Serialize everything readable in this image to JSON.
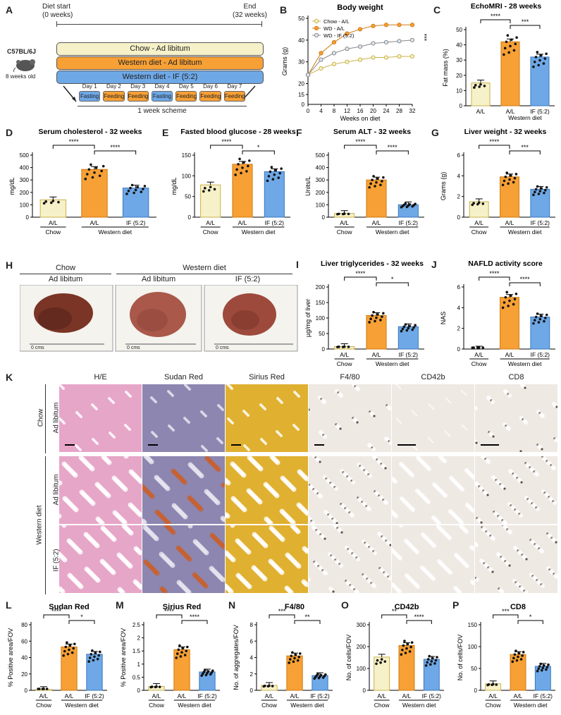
{
  "colors": {
    "chow": "#f7f1c9",
    "chow_edge": "#c9b24a",
    "wd": "#f7a035",
    "wd_edge": "#d07a10",
    "if": "#6ea8e6",
    "if_edge": "#3b78c0",
    "histo_he": "#e6a6c8",
    "histo_sudan": "#8c86b0",
    "histo_sirius": "#e0b030",
    "histo_ihc": "#efe9e4"
  },
  "panelA": {
    "label": "A",
    "diet_start": "Diet start",
    "diet_start_sub": "(0 weeks)",
    "end": "End",
    "end_sub": "(32 weeks)",
    "strain": "C57BL/6J",
    "age": "8 weeks old",
    "bars": [
      "Chow - Ad libitum",
      "Western diet - Ad libitum",
      "Western diet - IF (5:2)"
    ],
    "days": [
      "Day 1",
      "Day 2",
      "Day 3",
      "Day 4",
      "Day 5",
      "Day 6",
      "Day 7"
    ],
    "day_states": [
      "Fasting",
      "Feeding",
      "Feeding",
      "Fasting",
      "Feeding",
      "Feeding",
      "Feeding"
    ],
    "scheme": "1 week scheme"
  },
  "panelB": {
    "label": "B",
    "title": "Body weight",
    "ylabel": "Grams (g)",
    "xlabel": "Weeks on diet",
    "sig": "***",
    "legend": [
      "Chow - A/L",
      "WD - A/L",
      "WD - IF (5:2)"
    ],
    "yticks": [
      "50",
      "40",
      "30",
      "20",
      "15",
      "0"
    ],
    "xticks": [
      "0",
      "4",
      "8",
      "12",
      "16",
      "20",
      "24",
      "28",
      "32"
    ]
  },
  "cats": {
    "al": "A/L",
    "if": "IF (5:2)",
    "chow": "Chow",
    "wd": "Western diet"
  },
  "chart_data": [
    {
      "panel": "B",
      "type": "line",
      "title": "Body weight",
      "xlabel": "Weeks on diet",
      "ylabel": "Grams (g)",
      "x": [
        0,
        4,
        8,
        12,
        16,
        20,
        24,
        28,
        32
      ],
      "series": [
        {
          "name": "Chow - A/L",
          "values": [
            24,
            27,
            29,
            30,
            31,
            32,
            32,
            32.5,
            32.5
          ]
        },
        {
          "name": "WD - A/L",
          "values": [
            24,
            34,
            39,
            43,
            45,
            46.5,
            47,
            47,
            47
          ]
        },
        {
          "name": "WD - IF (5:2)",
          "values": [
            24,
            31,
            34,
            36,
            37,
            38.5,
            39,
            39.5,
            40
          ]
        }
      ],
      "ylim": [
        0,
        50
      ]
    },
    {
      "panel": "C",
      "type": "bar",
      "title": "EchoMRI - 28 weeks",
      "ylabel": "Fat mass (%)",
      "categories": [
        "A/L",
        "A/L",
        "IF (5:2)"
      ],
      "values": [
        15,
        42,
        32
      ],
      "ylim": [
        0,
        50
      ],
      "yticks": [
        0,
        10,
        20,
        30,
        40,
        50
      ],
      "sig": [
        {
          "pair": [
            0,
            1
          ],
          "text": "****"
        },
        {
          "pair": [
            1,
            2
          ],
          "text": "***"
        }
      ]
    },
    {
      "panel": "D",
      "type": "bar",
      "title": "Serum cholesterol - 32 weeks",
      "ylabel": "mg/dL",
      "categories": [
        "A/L",
        "A/L",
        "IF (5:2)"
      ],
      "values": [
        140,
        385,
        235
      ],
      "ylim": [
        0,
        500
      ],
      "yticks": [
        0,
        100,
        200,
        300,
        400,
        500
      ],
      "sig": [
        {
          "pair": [
            0,
            1
          ],
          "text": "****"
        },
        {
          "pair": [
            1,
            2
          ],
          "text": "****"
        }
      ]
    },
    {
      "panel": "E",
      "type": "bar",
      "title": "Fasted blood glucose - 28 weeks",
      "ylabel": "mg/dL",
      "categories": [
        "A/L",
        "A/L",
        "IF (5:2)"
      ],
      "values": [
        78,
        128,
        110
      ],
      "ylim": [
        0,
        150
      ],
      "yticks": [
        0,
        50,
        100,
        150
      ],
      "sig": [
        {
          "pair": [
            0,
            1
          ],
          "text": "****"
        },
        {
          "pair": [
            1,
            2
          ],
          "text": "*"
        }
      ]
    },
    {
      "panel": "F",
      "type": "bar",
      "title": "Serum ALT - 32 weeks",
      "ylabel": "Units/L",
      "categories": [
        "A/L",
        "A/L",
        "IF (5:2)"
      ],
      "values": [
        30,
        300,
        100
      ],
      "ylim": [
        0,
        500
      ],
      "yticks": [
        0,
        100,
        200,
        300,
        400,
        500
      ],
      "sig": [
        {
          "pair": [
            0,
            1
          ],
          "text": "****"
        },
        {
          "pair": [
            1,
            2
          ],
          "text": "****"
        }
      ]
    },
    {
      "panel": "G",
      "type": "bar",
      "title": "Liver weight - 32 weeks",
      "ylabel": "Grams (g)",
      "categories": [
        "A/L",
        "A/L",
        "IF (5:2)"
      ],
      "values": [
        1.5,
        3.9,
        2.7
      ],
      "ylim": [
        0,
        6
      ],
      "yticks": [
        0,
        2,
        4,
        6
      ],
      "sig": [
        {
          "pair": [
            0,
            1
          ],
          "text": "****"
        },
        {
          "pair": [
            1,
            2
          ],
          "text": "***"
        }
      ]
    },
    {
      "panel": "I",
      "type": "bar",
      "title": "Liver triglycerides - 32 weeks",
      "ylabel": "µg/mg of liver",
      "categories": [
        "A/L",
        "A/L",
        "IF (5:2)"
      ],
      "values": [
        8,
        108,
        72
      ],
      "ylim": [
        0,
        200
      ],
      "yticks": [
        0,
        50,
        100,
        150,
        200
      ],
      "sig": [
        {
          "pair": [
            0,
            1
          ],
          "text": "****"
        },
        {
          "pair": [
            1,
            2
          ],
          "text": "*"
        }
      ]
    },
    {
      "panel": "J",
      "type": "bar",
      "title": "NAFLD activity score",
      "ylabel": "NAS",
      "categories": [
        "A/L",
        "A/L",
        "IF (5:2)"
      ],
      "values": [
        0,
        5,
        3.1
      ],
      "ylim": [
        0,
        6
      ],
      "yticks": [
        0,
        2,
        4,
        6
      ],
      "sig": [
        {
          "pair": [
            0,
            1
          ],
          "text": "****"
        },
        {
          "pair": [
            1,
            2
          ],
          "text": "****"
        }
      ]
    },
    {
      "panel": "L",
      "type": "bar",
      "title": "Sudan Red",
      "ylabel": "% Positive area/FOV",
      "categories": [
        "A/L",
        "A/L",
        "IF (5:2)"
      ],
      "values": [
        1,
        53,
        44
      ],
      "ylim": [
        0,
        80
      ],
      "yticks": [
        0,
        20,
        40,
        60,
        80
      ],
      "sig": [
        {
          "pair": [
            0,
            1
          ],
          "text": "****"
        },
        {
          "pair": [
            1,
            2
          ],
          "text": "*"
        }
      ]
    },
    {
      "panel": "M",
      "type": "bar",
      "title": "Sirius Red",
      "ylabel": "% Positive area/FOV",
      "categories": [
        "A/L",
        "A/L",
        "IF (5:2)"
      ],
      "values": [
        0.15,
        1.55,
        0.7
      ],
      "ylim": [
        0,
        2.5
      ],
      "yticks": [
        0,
        0.5,
        1.0,
        1.5,
        2.0,
        2.5
      ],
      "sig": [
        {
          "pair": [
            0,
            1
          ],
          "text": "****"
        },
        {
          "pair": [
            1,
            2
          ],
          "text": "****"
        }
      ]
    },
    {
      "panel": "N",
      "type": "bar",
      "title": "F4/80",
      "ylabel": "No. of aggregates/FOV",
      "categories": [
        "A/L",
        "A/L",
        "IF (5:2)"
      ],
      "values": [
        0.6,
        4.2,
        1.8
      ],
      "ylim": [
        0,
        8
      ],
      "yticks": [
        0,
        2,
        4,
        6,
        8
      ],
      "sig": [
        {
          "pair": [
            0,
            1
          ],
          "text": "***"
        },
        {
          "pair": [
            1,
            2
          ],
          "text": "**"
        }
      ]
    },
    {
      "panel": "O",
      "type": "bar",
      "title": "CD42b",
      "ylabel": "No. of cells/FOV",
      "categories": [
        "A/L",
        "A/L",
        "IF (5:2)"
      ],
      "values": [
        152,
        205,
        142
      ],
      "ylim": [
        0,
        300
      ],
      "yticks": [
        0,
        100,
        200,
        300
      ],
      "sig": [
        {
          "pair": [
            0,
            1
          ],
          "text": "**"
        },
        {
          "pair": [
            1,
            2
          ],
          "text": "****"
        }
      ]
    },
    {
      "panel": "P",
      "type": "bar",
      "title": "CD8",
      "ylabel": "No. of cells/FOV",
      "categories": [
        "A/L",
        "A/L",
        "IF (5:2)"
      ],
      "values": [
        15,
        82,
        55
      ],
      "ylim": [
        0,
        150
      ],
      "yticks": [
        0,
        50,
        100,
        150
      ],
      "sig": [
        {
          "pair": [
            0,
            1
          ],
          "text": "***"
        },
        {
          "pair": [
            1,
            2
          ],
          "text": "*"
        }
      ]
    }
  ],
  "panelH": {
    "label": "H",
    "chow": "Chow",
    "wd": "Western diet",
    "ad1": "Ad libitum",
    "ad2": "Ad libitum",
    "if": "IF (5:2)",
    "ruler": "0 cms"
  },
  "panelK": {
    "label": "K",
    "cols": [
      "H/E",
      "Sudan Red",
      "Sirius Red",
      "F4/80",
      "CD42b",
      "CD8"
    ],
    "chow": "Chow",
    "wd": "Western diet",
    "ad1": "Ad libitum",
    "ad2": "Ad libitum",
    "if": "IF (5:2)"
  }
}
